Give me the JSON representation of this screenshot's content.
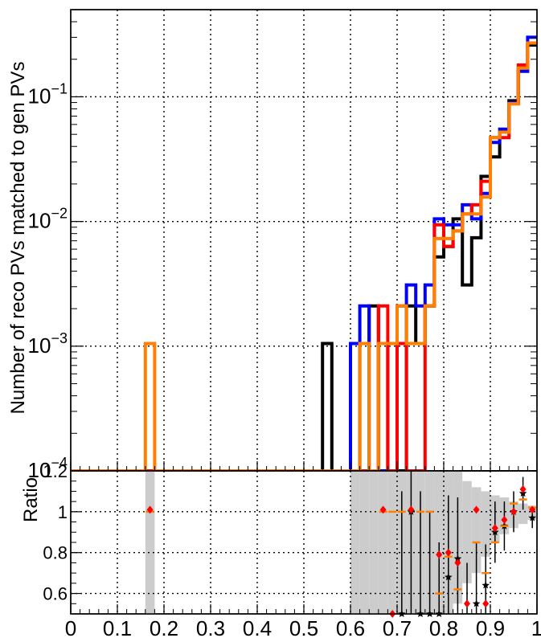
{
  "chart_data": [
    {
      "type": "line",
      "subtype": "step-histogram",
      "scale": "log",
      "ylabel": "Number of reco PVs matched to gen PVs",
      "xlim": [
        0,
        1
      ],
      "ylim": [
        0.0001,
        0.5
      ],
      "grid": true,
      "y_ticks": [
        {
          "value": 0.1,
          "base": "10",
          "exp": "−1"
        },
        {
          "value": 0.01,
          "base": "10",
          "exp": "−2"
        },
        {
          "value": 0.001,
          "base": "10",
          "exp": "−3"
        },
        {
          "value": 0.0001,
          "base": "10",
          "exp": "−4"
        }
      ],
      "bin_width": 0.02,
      "series": [
        {
          "color": "#000000",
          "bins": [
            {
              "x": 0.54,
              "y": 0.00105
            },
            {
              "x": 0.62,
              "y": 0.00105
            },
            {
              "x": 0.64,
              "y": 0.0021
            },
            {
              "x": 0.68,
              "y": 0.00105
            },
            {
              "x": 0.72,
              "y": 0.0021
            },
            {
              "x": 0.74,
              "y": 0.00105
            },
            {
              "x": 0.76,
              "y": 0.0021
            },
            {
              "x": 0.78,
              "y": 0.0052
            },
            {
              "x": 0.8,
              "y": 0.0063
            },
            {
              "x": 0.82,
              "y": 0.0105
            },
            {
              "x": 0.84,
              "y": 0.0031
            },
            {
              "x": 0.86,
              "y": 0.0074
            },
            {
              "x": 0.88,
              "y": 0.023
            },
            {
              "x": 0.9,
              "y": 0.033
            },
            {
              "x": 0.92,
              "y": 0.052
            },
            {
              "x": 0.94,
              "y": 0.093
            },
            {
              "x": 0.96,
              "y": 0.17
            },
            {
              "x": 0.98,
              "y": 0.26
            }
          ]
        },
        {
          "color": "#0000ff",
          "bins": [
            {
              "x": 0.6,
              "y": 0.00105
            },
            {
              "x": 0.62,
              "y": 0.0021
            },
            {
              "x": 0.7,
              "y": 0.0021
            },
            {
              "x": 0.72,
              "y": 0.0031
            },
            {
              "x": 0.74,
              "y": 0.0021
            },
            {
              "x": 0.76,
              "y": 0.0031
            },
            {
              "x": 0.78,
              "y": 0.0105
            },
            {
              "x": 0.8,
              "y": 0.0094
            },
            {
              "x": 0.82,
              "y": 0.0094
            },
            {
              "x": 0.84,
              "y": 0.0136
            },
            {
              "x": 0.86,
              "y": 0.0105
            },
            {
              "x": 0.88,
              "y": 0.0168
            },
            {
              "x": 0.9,
              "y": 0.043
            },
            {
              "x": 0.92,
              "y": 0.055
            },
            {
              "x": 0.94,
              "y": 0.09
            },
            {
              "x": 0.96,
              "y": 0.16
            },
            {
              "x": 0.98,
              "y": 0.3
            }
          ]
        },
        {
          "color": "#ff0000",
          "bins": [
            {
              "x": 0.66,
              "y": 0.0021
            },
            {
              "x": 0.7,
              "y": 0.00105
            },
            {
              "x": 0.76,
              "y": 0.0021
            },
            {
              "x": 0.78,
              "y": 0.0094
            },
            {
              "x": 0.8,
              "y": 0.0063
            },
            {
              "x": 0.82,
              "y": 0.0084
            },
            {
              "x": 0.84,
              "y": 0.0115
            },
            {
              "x": 0.86,
              "y": 0.0136
            },
            {
              "x": 0.88,
              "y": 0.021
            },
            {
              "x": 0.9,
              "y": 0.047
            },
            {
              "x": 0.92,
              "y": 0.047
            },
            {
              "x": 0.94,
              "y": 0.088
            },
            {
              "x": 0.96,
              "y": 0.18
            },
            {
              "x": 0.98,
              "y": 0.27
            }
          ]
        },
        {
          "color": "#ff7f00",
          "bins": [
            {
              "x": 0.16,
              "y": 0.00105
            },
            {
              "x": 0.62,
              "y": 0.00105
            },
            {
              "x": 0.66,
              "y": 0.00105
            },
            {
              "x": 0.68,
              "y": 0.00105
            },
            {
              "x": 0.7,
              "y": 0.0021
            },
            {
              "x": 0.72,
              "y": 0.00105
            },
            {
              "x": 0.74,
              "y": 0.00105
            },
            {
              "x": 0.76,
              "y": 0.0021
            },
            {
              "x": 0.78,
              "y": 0.0073
            },
            {
              "x": 0.8,
              "y": 0.0073
            },
            {
              "x": 0.82,
              "y": 0.0084
            },
            {
              "x": 0.84,
              "y": 0.0115
            },
            {
              "x": 0.86,
              "y": 0.0115
            },
            {
              "x": 0.88,
              "y": 0.0157
            },
            {
              "x": 0.9,
              "y": 0.047
            },
            {
              "x": 0.92,
              "y": 0.052
            },
            {
              "x": 0.94,
              "y": 0.088
            },
            {
              "x": 0.96,
              "y": 0.17
            },
            {
              "x": 0.98,
              "y": 0.27
            }
          ]
        }
      ]
    },
    {
      "type": "scatter",
      "ylabel": "Ratio",
      "xlim": [
        0,
        1
      ],
      "ylim": [
        0.5,
        1.2
      ],
      "grid": true,
      "y_ticks": [
        "1.2",
        "1",
        "0.8",
        "0.6"
      ],
      "x_ticks": [
        "0",
        "0.1",
        "0.2",
        "0.3",
        "0.4",
        "0.5",
        "0.6",
        "0.7",
        "0.8",
        "0.9",
        "1"
      ],
      "uncertainty_band_color": "#cccccc",
      "uncertainty_band": [
        {
          "x": 0.17,
          "lo": 0.0,
          "hi": 2.0
        },
        {
          "x": 0.61,
          "lo": 0.0,
          "hi": 2.0
        },
        {
          "x": 0.63,
          "lo": 0.0,
          "hi": 2.0
        },
        {
          "x": 0.65,
          "lo": 0.0,
          "hi": 2.0
        },
        {
          "x": 0.67,
          "lo": 0.3,
          "hi": 1.7
        },
        {
          "x": 0.69,
          "lo": 0.3,
          "hi": 1.7
        },
        {
          "x": 0.71,
          "lo": 0.0,
          "hi": 2.0
        },
        {
          "x": 0.73,
          "lo": 0.3,
          "hi": 1.7
        },
        {
          "x": 0.75,
          "lo": 0.0,
          "hi": 2.0
        },
        {
          "x": 0.77,
          "lo": 0.4,
          "hi": 1.55
        },
        {
          "x": 0.79,
          "lo": 0.45,
          "hi": 1.3
        },
        {
          "x": 0.81,
          "lo": 0.5,
          "hi": 1.25
        },
        {
          "x": 0.83,
          "lo": 0.55,
          "hi": 1.2
        },
        {
          "x": 0.85,
          "lo": 0.65,
          "hi": 1.15
        },
        {
          "x": 0.87,
          "lo": 0.7,
          "hi": 1.12
        },
        {
          "x": 0.89,
          "lo": 0.78,
          "hi": 1.1
        },
        {
          "x": 0.91,
          "lo": 0.85,
          "hi": 1.08
        },
        {
          "x": 0.93,
          "lo": 0.89,
          "hi": 1.07
        },
        {
          "x": 0.95,
          "lo": 0.92,
          "hi": 1.05
        },
        {
          "x": 0.97,
          "lo": 0.94,
          "hi": 1.04
        },
        {
          "x": 0.99,
          "lo": 0.96,
          "hi": 1.03
        }
      ],
      "series": [
        {
          "color": "#000000",
          "marker": "star",
          "points": [
            {
              "x": 0.71,
              "y": 0.5,
              "err": 0.6
            },
            {
              "x": 0.73,
              "y": 1.0,
              "err": 0.6
            },
            {
              "x": 0.75,
              "y": 0.5,
              "err": 0.6
            },
            {
              "x": 0.77,
              "y": 0.5,
              "err": 0.5
            },
            {
              "x": 0.79,
              "y": 0.5,
              "err": 0.35
            },
            {
              "x": 0.81,
              "y": 0.68,
              "err": 0.4
            },
            {
              "x": 0.83,
              "y": 0.77,
              "err": 0.3
            },
            {
              "x": 0.85,
              "y": 0.45,
              "err": 0.3
            },
            {
              "x": 0.87,
              "y": 0.55,
              "err": 0.3
            },
            {
              "x": 0.89,
              "y": 0.64,
              "err": 0.2
            },
            {
              "x": 0.91,
              "y": 0.9,
              "err": 0.15
            },
            {
              "x": 0.93,
              "y": 0.93,
              "err": 0.12
            },
            {
              "x": 0.95,
              "y": 1.0,
              "err": 0.1
            },
            {
              "x": 0.97,
              "y": 1.09,
              "err": 0.08
            },
            {
              "x": 0.99,
              "y": 0.97,
              "err": 0.05
            }
          ]
        },
        {
          "color": "#ff7f00",
          "marker": "cross",
          "points": [
            {
              "x": 0.17,
              "y": 1.0,
              "err": 0.0
            },
            {
              "x": 0.67,
              "y": 1.0,
              "err": 0.0
            },
            {
              "x": 0.69,
              "y": 1.0,
              "err": 0.0
            },
            {
              "x": 0.71,
              "y": 1.0,
              "err": 0.0
            },
            {
              "x": 0.75,
              "y": 1.0,
              "err": 0.0
            },
            {
              "x": 0.77,
              "y": 1.0,
              "err": 0.0
            },
            {
              "x": 0.79,
              "y": 0.6,
              "err": 0.0
            },
            {
              "x": 0.81,
              "y": 0.78,
              "err": 0.0
            },
            {
              "x": 0.83,
              "y": 0.62,
              "err": 0.0
            },
            {
              "x": 0.87,
              "y": 0.85,
              "err": 0.0
            },
            {
              "x": 0.89,
              "y": 0.7,
              "err": 0.0
            },
            {
              "x": 0.91,
              "y": 0.85,
              "err": 0.0
            },
            {
              "x": 0.93,
              "y": 0.93,
              "err": 0.0
            },
            {
              "x": 0.95,
              "y": 1.04,
              "err": 0.0
            },
            {
              "x": 0.97,
              "y": 1.06,
              "err": 0.0
            },
            {
              "x": 0.99,
              "y": 1.02,
              "err": 0.0
            }
          ]
        },
        {
          "color": "#ff0000",
          "marker": "diamond",
          "points": [
            {
              "x": 0.17,
              "y": 1.01,
              "err": 0.0
            },
            {
              "x": 0.67,
              "y": 1.01,
              "err": 0.0
            },
            {
              "x": 0.69,
              "y": 0.5,
              "err": 0.0
            },
            {
              "x": 0.73,
              "y": 1.01,
              "err": 0.0
            },
            {
              "x": 0.79,
              "y": 0.79,
              "err": 0.0
            },
            {
              "x": 0.81,
              "y": 0.8,
              "err": 0.0
            },
            {
              "x": 0.83,
              "y": 0.75,
              "err": 0.0
            },
            {
              "x": 0.85,
              "y": 0.55,
              "err": 0.0
            },
            {
              "x": 0.87,
              "y": 1.01,
              "err": 0.0
            },
            {
              "x": 0.89,
              "y": 0.55,
              "err": 0.0
            },
            {
              "x": 0.91,
              "y": 0.92,
              "err": 0.0
            },
            {
              "x": 0.93,
              "y": 0.96,
              "err": 0.0
            },
            {
              "x": 0.95,
              "y": 1.0,
              "err": 0.0
            },
            {
              "x": 0.97,
              "y": 1.11,
              "err": 0.0
            },
            {
              "x": 0.99,
              "y": 1.01,
              "err": 0.0
            }
          ]
        }
      ]
    }
  ]
}
